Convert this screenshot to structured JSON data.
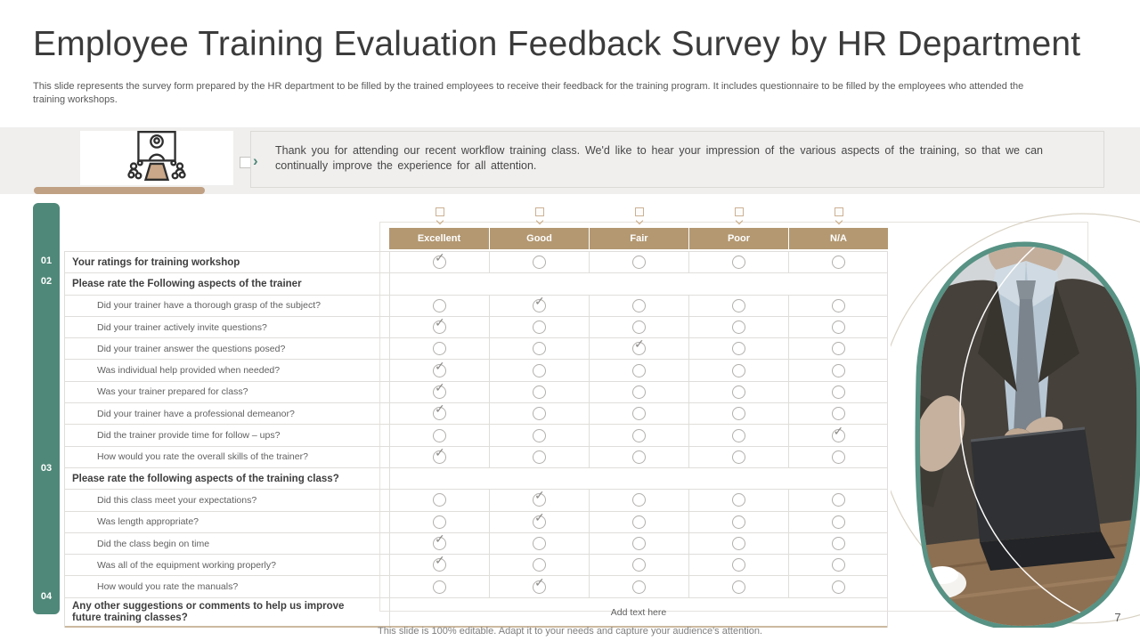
{
  "slide": {
    "title": "Employee Training Evaluation Feedback Survey by HR Department",
    "subtitle": "This slide represents the survey form prepared by the HR department to be filled by the trained employees to receive their feedback for the training program. It includes questionnaire to be filled by the employees who attended the training workshops.",
    "footer": "This slide is 100% editable. Adapt it to your needs and capture your audience's attention.",
    "page_number": "7"
  },
  "intro": {
    "icon": "training-presentation-icon",
    "text": "Thank you for attending our recent workflow training class. We'd like to hear your impression of the various aspects of the training, so that we can continually improve the experience for all attention."
  },
  "icons": {
    "chevron_right": "›",
    "radio_check": "✓"
  },
  "colors": {
    "accent_green": "#4f8878",
    "blob_green": "#579284",
    "accent_tan": "#b39871",
    "band_gray": "#f0efee",
    "table_border": "#e0dedb"
  },
  "survey": {
    "columns": [
      "Excellent",
      "Good",
      "Fair",
      "Poor",
      "N/A"
    ],
    "rows": [
      {
        "type": "section_rated",
        "num": "01",
        "label": "Your ratings for training workshop",
        "rating": "Excellent"
      },
      {
        "type": "section",
        "num": "02",
        "label": "Please rate the Following aspects of the trainer",
        "rating": null
      },
      {
        "type": "question",
        "label": "Did your trainer have a thorough grasp of the subject?",
        "rating": "Good"
      },
      {
        "type": "question",
        "label": "Did your trainer actively invite questions?",
        "rating": "Excellent"
      },
      {
        "type": "question",
        "label": "Did your trainer answer the questions posed?",
        "rating": "Fair"
      },
      {
        "type": "question",
        "label": "Was individual help provided when needed?",
        "rating": "Excellent"
      },
      {
        "type": "question",
        "label": "Was your trainer prepared for class?",
        "rating": "Excellent"
      },
      {
        "type": "question",
        "label": "Did your trainer have a professional demeanor?",
        "rating": "Excellent"
      },
      {
        "type": "question",
        "label": "Did the trainer provide time for follow – ups?",
        "rating": "N/A"
      },
      {
        "type": "question",
        "label": "How would you rate the overall skills of the trainer?",
        "rating": "Excellent"
      },
      {
        "type": "section",
        "num": "03",
        "label": "Please rate the following aspects of the training class?",
        "rating": null
      },
      {
        "type": "question",
        "label": "Did this class meet your expectations?",
        "rating": "Good"
      },
      {
        "type": "question",
        "label": "Was length appropriate?",
        "rating": "Good"
      },
      {
        "type": "question",
        "label": "Did the class begin on time",
        "rating": "Excellent"
      },
      {
        "type": "question",
        "label": "Was all of the equipment working properly?",
        "rating": "Excellent"
      },
      {
        "type": "question",
        "label": "How would you rate the manuals?",
        "rating": "Good"
      },
      {
        "type": "comment",
        "num": "04",
        "label": "Any other suggestions or comments to help us improve future training classes?",
        "placeholder": "Add text here"
      }
    ]
  }
}
